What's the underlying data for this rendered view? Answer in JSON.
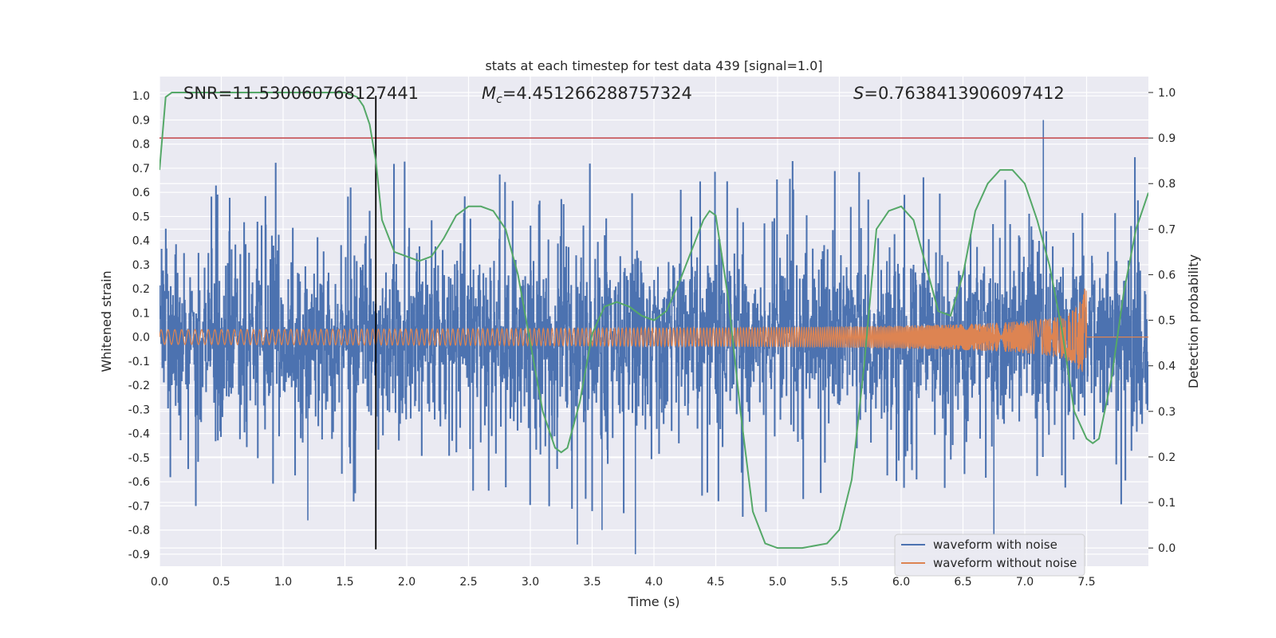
{
  "chart_data": {
    "type": "line",
    "title": "stats at each timestep for test data 439 [signal=1.0]",
    "xlabel": "Time (s)",
    "ylabel": "Whitened strain",
    "ylabel_right": "Detection probability",
    "xlim": [
      0.0,
      8.0
    ],
    "ylim": [
      -0.95,
      1.08
    ],
    "ylim_right": [
      -0.04,
      1.035
    ],
    "x_ticks": [
      "0.0",
      "0.5",
      "1.0",
      "1.5",
      "2.0",
      "2.5",
      "3.0",
      "3.5",
      "4.0",
      "4.5",
      "5.0",
      "5.5",
      "6.0",
      "6.5",
      "7.0",
      "7.5"
    ],
    "y_ticks": [
      "1.0",
      "0.9",
      "0.8",
      "0.7",
      "0.6",
      "0.5",
      "0.4",
      "0.3",
      "0.2",
      "0.1",
      "0.0",
      "-0.1",
      "-0.2",
      "-0.3",
      "-0.4",
      "-0.5",
      "-0.6",
      "-0.7",
      "-0.8",
      "-0.9"
    ],
    "y_ticks_right": [
      "1.0",
      "0.9",
      "0.8",
      "0.7",
      "0.6",
      "0.5",
      "0.4",
      "0.3",
      "0.2",
      "0.1",
      "0.0"
    ],
    "annotations": {
      "snr": "SNR=11.530060768127441",
      "mc_symbol": "M",
      "mc_sub": "c",
      "mc_value": "=4.451266288757324",
      "s_symbol": "S",
      "s_value": "=0.7638413906097412"
    },
    "threshold": {
      "value": 0.9,
      "axis": "right",
      "color": "#c44e52"
    },
    "marker_time": 1.75,
    "legend": {
      "placement": "lower-right",
      "entries": [
        "waveform with noise",
        "waveform without noise"
      ]
    },
    "series": [
      {
        "name": "waveform with noise",
        "color": "#4c72b0",
        "kind": "noise",
        "typical_amplitude": 0.35,
        "spike_max": 0.9,
        "spike_min": -0.86
      },
      {
        "name": "waveform without noise",
        "color": "#dd8452",
        "kind": "chirp",
        "start_amplitude": 0.03,
        "peak_amplitude": 0.22,
        "merger_time": 7.5
      },
      {
        "name": "",
        "color": "#55a868",
        "axis": "right",
        "x": [
          0.0,
          0.05,
          0.1,
          0.2,
          0.4,
          0.6,
          0.8,
          1.0,
          1.2,
          1.4,
          1.5,
          1.6,
          1.65,
          1.7,
          1.75,
          1.8,
          1.9,
          2.0,
          2.1,
          2.2,
          2.3,
          2.4,
          2.5,
          2.6,
          2.7,
          2.8,
          2.9,
          3.0,
          3.1,
          3.2,
          3.25,
          3.3,
          3.4,
          3.5,
          3.6,
          3.7,
          3.8,
          3.9,
          4.0,
          4.1,
          4.2,
          4.3,
          4.4,
          4.45,
          4.5,
          4.6,
          4.7,
          4.8,
          4.9,
          5.0,
          5.2,
          5.4,
          5.5,
          5.6,
          5.7,
          5.8,
          5.9,
          6.0,
          6.1,
          6.2,
          6.3,
          6.4,
          6.5,
          6.6,
          6.7,
          6.8,
          6.9,
          7.0,
          7.1,
          7.2,
          7.3,
          7.4,
          7.5,
          7.55,
          7.6,
          7.7,
          7.8,
          7.9,
          8.0
        ],
        "y": [
          0.83,
          0.99,
          1.0,
          1.0,
          1.0,
          1.0,
          1.0,
          1.0,
          1.0,
          1.0,
          1.0,
          0.99,
          0.97,
          0.93,
          0.85,
          0.72,
          0.65,
          0.64,
          0.63,
          0.64,
          0.68,
          0.73,
          0.75,
          0.75,
          0.74,
          0.7,
          0.6,
          0.45,
          0.3,
          0.22,
          0.21,
          0.22,
          0.32,
          0.47,
          0.53,
          0.54,
          0.53,
          0.51,
          0.5,
          0.52,
          0.58,
          0.65,
          0.72,
          0.74,
          0.73,
          0.55,
          0.3,
          0.08,
          0.01,
          0.0,
          0.0,
          0.01,
          0.04,
          0.15,
          0.4,
          0.7,
          0.74,
          0.75,
          0.72,
          0.62,
          0.52,
          0.51,
          0.6,
          0.74,
          0.8,
          0.83,
          0.83,
          0.8,
          0.72,
          0.62,
          0.48,
          0.3,
          0.24,
          0.23,
          0.24,
          0.37,
          0.56,
          0.7,
          0.78
        ]
      }
    ]
  }
}
